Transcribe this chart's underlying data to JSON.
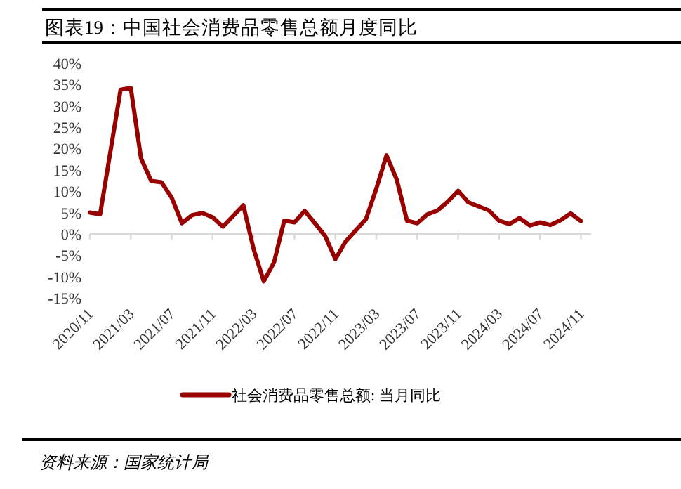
{
  "chart_data": {
    "type": "line",
    "title": "图表19：中国社会消费品零售总额月度同比",
    "annotations": [
      "资料来源：国家统计局"
    ],
    "x": [
      "2020-11",
      "2020-12",
      "2021-02",
      "2021-03",
      "2021-04",
      "2021-05",
      "2021-06",
      "2021-07",
      "2021-08",
      "2021-09",
      "2021-10",
      "2021-11",
      "2021-12",
      "2022-02",
      "2022-03",
      "2022-04",
      "2022-05",
      "2022-06",
      "2022-07",
      "2022-08",
      "2022-09",
      "2022-10",
      "2022-11",
      "2022-12",
      "2023-02",
      "2023-03",
      "2023-04",
      "2023-05",
      "2023-06",
      "2023-07",
      "2023-08",
      "2023-09",
      "2023-10",
      "2023-11",
      "2023-12",
      "2024-02",
      "2024-03",
      "2024-04",
      "2024-05",
      "2024-06",
      "2024-07",
      "2024-08",
      "2024-09",
      "2024-10",
      "2024-11"
    ],
    "series": [
      {
        "name": "社会消费品零售总额: 当月同比",
        "color": "#990000",
        "values": [
          5.0,
          4.6,
          33.8,
          34.2,
          17.7,
          12.4,
          12.1,
          8.5,
          2.5,
          4.4,
          4.9,
          3.9,
          1.7,
          6.7,
          -3.5,
          -11.1,
          -6.7,
          3.1,
          2.7,
          5.4,
          2.5,
          -0.5,
          -5.9,
          -1.8,
          3.5,
          10.6,
          18.4,
          12.7,
          3.1,
          2.5,
          4.6,
          5.5,
          7.6,
          10.1,
          7.4,
          5.5,
          3.1,
          2.3,
          3.7,
          2.0,
          2.7,
          2.1,
          3.2,
          4.8,
          3.0
        ]
      }
    ],
    "xlim": [
      "2020-11",
      "2024-12"
    ],
    "xticks": [
      {
        "value": "2020-11",
        "label": "2020/11"
      },
      {
        "value": "2021-03",
        "label": "2021/03"
      },
      {
        "value": "2021-07",
        "label": "2021/07"
      },
      {
        "value": "2021-11",
        "label": "2021/11"
      },
      {
        "value": "2022-03",
        "label": "2022/03"
      },
      {
        "value": "2022-07",
        "label": "2022/07"
      },
      {
        "value": "2022-11",
        "label": "2022/11"
      },
      {
        "value": "2023-03",
        "label": "2023/03"
      },
      {
        "value": "2023-07",
        "label": "2023/07"
      },
      {
        "value": "2023-11",
        "label": "2023/11"
      },
      {
        "value": "2024-03",
        "label": "2024/03"
      },
      {
        "value": "2024-07",
        "label": "2024/07"
      },
      {
        "value": "2024-11",
        "label": "2024/11"
      }
    ],
    "ylim": [
      -15,
      40
    ],
    "yticks": [
      {
        "value": 40,
        "label": "40%"
      },
      {
        "value": 35,
        "label": "35%"
      },
      {
        "value": 30,
        "label": "30%"
      },
      {
        "value": 25,
        "label": "25%"
      },
      {
        "value": 20,
        "label": "20%"
      },
      {
        "value": 15,
        "label": "15%"
      },
      {
        "value": 10,
        "label": "10%"
      },
      {
        "value": 5,
        "label": "5%"
      },
      {
        "value": 0,
        "label": "0%"
      },
      {
        "value": -5,
        "label": "-5%"
      },
      {
        "value": -10,
        "label": "-10%"
      },
      {
        "value": -15,
        "label": "-15%"
      }
    ],
    "legend": "bottom",
    "marker": "none",
    "line_style": "solid"
  }
}
